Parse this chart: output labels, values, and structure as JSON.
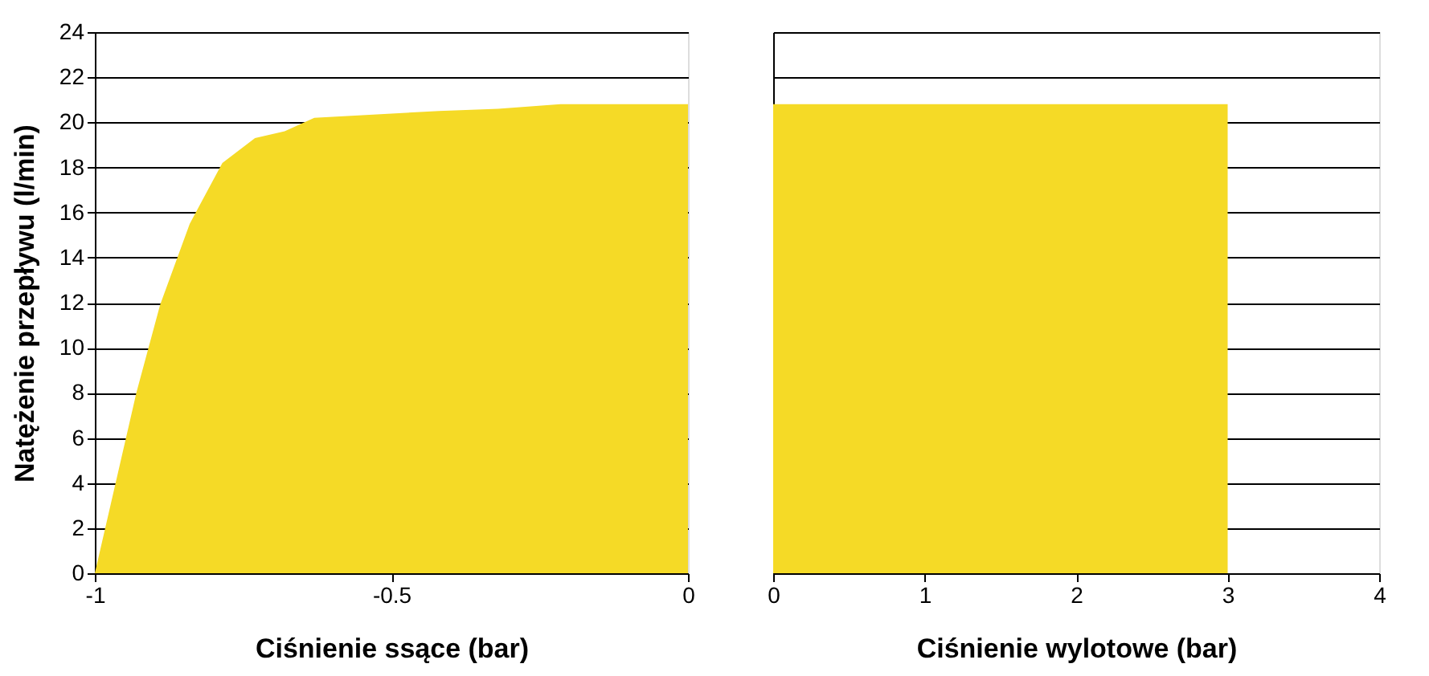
{
  "chart_data": [
    {
      "type": "area",
      "xlabel": "Ciśnienie ssące (bar)",
      "ylabel": "Natężenie przepływu (l/min)",
      "series": [
        {
          "color": "#f5da26",
          "x": [
            -1,
            -0.93,
            -0.89,
            -0.84,
            -0.785,
            -0.73,
            -0.68,
            -0.63,
            -0.42,
            -0.32,
            -0.215,
            0
          ],
          "values": [
            0,
            8,
            11.9,
            15.5,
            18.2,
            19.3,
            19.6,
            20.2,
            20.5,
            20.6,
            20.8,
            20.8
          ]
        }
      ],
      "xlim": [
        -1,
        0
      ],
      "xticks": [
        -1,
        -0.5,
        0
      ],
      "ylim": [
        0,
        24
      ],
      "yticks": [
        0,
        2,
        4,
        6,
        8,
        10,
        12,
        14,
        16,
        18,
        20,
        22,
        24
      ],
      "grid": "y"
    },
    {
      "type": "area",
      "xlabel": "Ciśnienie wylotowe (bar)",
      "series": [
        {
          "color": "#f5da26",
          "x": [
            0,
            3
          ],
          "values": [
            20.8,
            20.8
          ]
        }
      ],
      "xlim": [
        0,
        4
      ],
      "xticks": [
        0,
        1,
        2,
        3,
        4
      ],
      "ylim": [
        0,
        24
      ],
      "yticks": [
        0,
        2,
        4,
        6,
        8,
        10,
        12,
        14,
        16,
        18,
        20,
        22,
        24
      ],
      "grid": "y",
      "tick_labels": "x"
    }
  ]
}
